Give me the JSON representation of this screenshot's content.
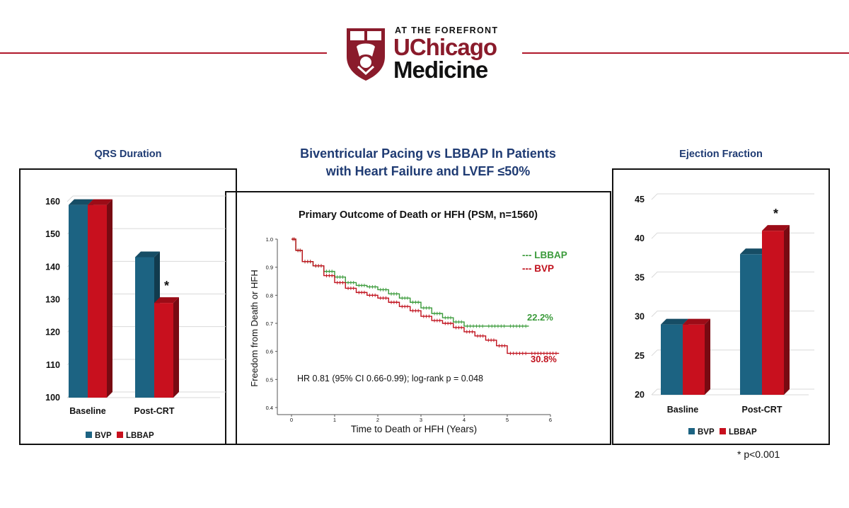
{
  "header": {
    "tagline": "AT THE FOREFRONT",
    "brand_line1": "UChicago",
    "brand_line2": "Medicine",
    "colors": {
      "maroon": "#8a1b2b",
      "red_rule": "#b0182b"
    }
  },
  "main_title": {
    "line1": "Biventricular Pacing vs LBBAP In Patients",
    "line2": "with  Heart Failure and LVEF ≤50%"
  },
  "footnote": "* p<0.001",
  "chart_data": [
    {
      "type": "bar",
      "title": "QRS Duration",
      "categories": [
        "Baseline",
        "Post-CRT"
      ],
      "series": [
        {
          "name": "BVP",
          "values": [
            159,
            143
          ],
          "color": "#1c6382"
        },
        {
          "name": "LBBAP",
          "values": [
            159,
            129
          ],
          "color": "#c8101e"
        }
      ],
      "ylim": [
        100,
        160
      ],
      "yticks": [
        "100",
        "110",
        "120",
        "130",
        "140",
        "150",
        "160"
      ],
      "annotation": "*",
      "legend": [
        "BVP",
        "LBBAP"
      ]
    },
    {
      "type": "line",
      "title": "Primary Outcome of Death or HFH (PSM, n=1560)",
      "xlabel": "Time to Death or HFH (Years)",
      "ylabel": "Freedom from Death or HFH",
      "xlim": [
        0,
        6
      ],
      "ylim": [
        0.4,
        1.0
      ],
      "xticks": [
        "0",
        "1",
        "2",
        "3",
        "4",
        "5",
        "6"
      ],
      "yticks": [
        "0.4",
        "0.5",
        "0.6",
        "0.7",
        "0.8",
        "0.9",
        "1.0"
      ],
      "series": [
        {
          "name": "LBBAP",
          "legend_label": "--- LBBAP",
          "color": "#3a9a3a",
          "end_label": "22.2%",
          "x": [
            0,
            0.1,
            0.25,
            0.5,
            0.75,
            1.0,
            1.25,
            1.5,
            1.75,
            2.0,
            2.25,
            2.5,
            2.75,
            3.0,
            3.25,
            3.5,
            3.75,
            4.0,
            4.5,
            5.0,
            5.5
          ],
          "y": [
            1.0,
            0.96,
            0.92,
            0.905,
            0.885,
            0.865,
            0.845,
            0.835,
            0.83,
            0.82,
            0.805,
            0.79,
            0.775,
            0.755,
            0.735,
            0.72,
            0.705,
            0.69,
            0.69,
            0.69,
            0.69
          ]
        },
        {
          "name": "BVP",
          "legend_label": "--- BVP",
          "color": "#c0101c",
          "end_label": "30.8%",
          "x": [
            0,
            0.1,
            0.25,
            0.5,
            0.75,
            1.0,
            1.25,
            1.5,
            1.75,
            2.0,
            2.25,
            2.5,
            2.75,
            3.0,
            3.25,
            3.5,
            3.75,
            4.0,
            4.25,
            4.5,
            4.75,
            5.0,
            5.5,
            6.2
          ],
          "y": [
            1.0,
            0.96,
            0.92,
            0.905,
            0.87,
            0.845,
            0.825,
            0.81,
            0.8,
            0.79,
            0.775,
            0.76,
            0.745,
            0.725,
            0.71,
            0.7,
            0.685,
            0.67,
            0.655,
            0.64,
            0.62,
            0.593,
            0.593,
            0.593
          ]
        }
      ],
      "annotation": "HR 0.81 (95% CI 0.66-0.99); log-rank p = 0.048"
    },
    {
      "type": "bar",
      "title": "Ejection Fraction",
      "categories": [
        "Basline",
        "Post-CRT"
      ],
      "series": [
        {
          "name": "BVP",
          "values": [
            29,
            38
          ],
          "color": "#1c6382"
        },
        {
          "name": "LBBAP",
          "values": [
            29,
            41
          ],
          "color": "#c8101e"
        }
      ],
      "ylim": [
        20,
        45
      ],
      "yticks": [
        "20",
        "25",
        "30",
        "35",
        "40",
        "45"
      ],
      "annotation": "*",
      "legend": [
        "BVP",
        "LBBAP"
      ]
    }
  ]
}
